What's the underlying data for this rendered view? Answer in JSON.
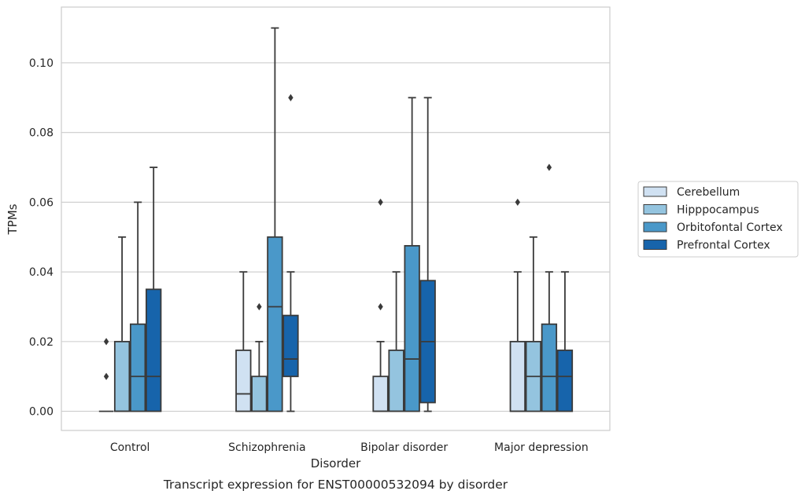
{
  "chart_data": {
    "type": "box",
    "xlabel": "Disorder",
    "ylabel": "TPMs",
    "caption": "Transcript expression for ENST00000532094 by disorder",
    "ylim": [
      -0.0055,
      0.116
    ],
    "yticks": [
      "0.00",
      "0.02",
      "0.04",
      "0.06",
      "0.08",
      "0.10"
    ],
    "grid": true,
    "legend_position": "right",
    "categories": [
      "Control",
      "Schizophrenia",
      "Bipolar disorder",
      "Major depression"
    ],
    "series": [
      {
        "name": "Cerebellum",
        "color": "#d0e1f2",
        "boxes": [
          {
            "min": 0,
            "q1": 0,
            "median": 0,
            "q3": 0,
            "max": 0,
            "outliers": [
              0.01,
              0.02
            ]
          },
          {
            "min": 0,
            "q1": 0,
            "median": 0.005,
            "q3": 0.0175,
            "max": 0.04,
            "outliers": []
          },
          {
            "min": 0,
            "q1": 0,
            "median": 0,
            "q3": 0.01,
            "max": 0.02,
            "outliers": [
              0.03,
              0.06
            ]
          },
          {
            "min": 0,
            "q1": 0,
            "median": 0,
            "q3": 0.02,
            "max": 0.04,
            "outliers": [
              0.06
            ]
          }
        ]
      },
      {
        "name": "Hipppocampus",
        "color": "#94c4df",
        "boxes": [
          {
            "min": 0,
            "q1": 0,
            "median": 0,
            "q3": 0.02,
            "max": 0.05,
            "outliers": []
          },
          {
            "min": 0,
            "q1": 0,
            "median": 0,
            "q3": 0.01,
            "max": 0.02,
            "outliers": [
              0.03
            ]
          },
          {
            "min": 0,
            "q1": 0,
            "median": 0,
            "q3": 0.0175,
            "max": 0.04,
            "outliers": []
          },
          {
            "min": 0,
            "q1": 0,
            "median": 0.01,
            "q3": 0.02,
            "max": 0.05,
            "outliers": []
          }
        ]
      },
      {
        "name": "Orbitofontal Cortex",
        "color": "#4a98c9",
        "boxes": [
          {
            "min": 0,
            "q1": 0,
            "median": 0.01,
            "q3": 0.025,
            "max": 0.06,
            "outliers": []
          },
          {
            "min": 0,
            "q1": 0,
            "median": 0.03,
            "q3": 0.05,
            "max": 0.11,
            "outliers": []
          },
          {
            "min": 0,
            "q1": 0,
            "median": 0.015,
            "q3": 0.0475,
            "max": 0.09,
            "outliers": []
          },
          {
            "min": 0,
            "q1": 0,
            "median": 0.01,
            "q3": 0.025,
            "max": 0.04,
            "outliers": [
              0.07
            ]
          }
        ]
      },
      {
        "name": "Prefrontal Cortex",
        "color": "#1764ab",
        "boxes": [
          {
            "min": 0,
            "q1": 0,
            "median": 0.01,
            "q3": 0.035,
            "max": 0.07,
            "outliers": []
          },
          {
            "min": 0,
            "q1": 0.01,
            "median": 0.015,
            "q3": 0.0275,
            "max": 0.04,
            "outliers": [
              0.09
            ]
          },
          {
            "min": 0,
            "q1": 0.0025,
            "median": 0.02,
            "q3": 0.0375,
            "max": 0.09,
            "outliers": []
          },
          {
            "min": 0,
            "q1": 0,
            "median": 0.01,
            "q3": 0.0175,
            "max": 0.04,
            "outliers": []
          }
        ]
      }
    ]
  }
}
